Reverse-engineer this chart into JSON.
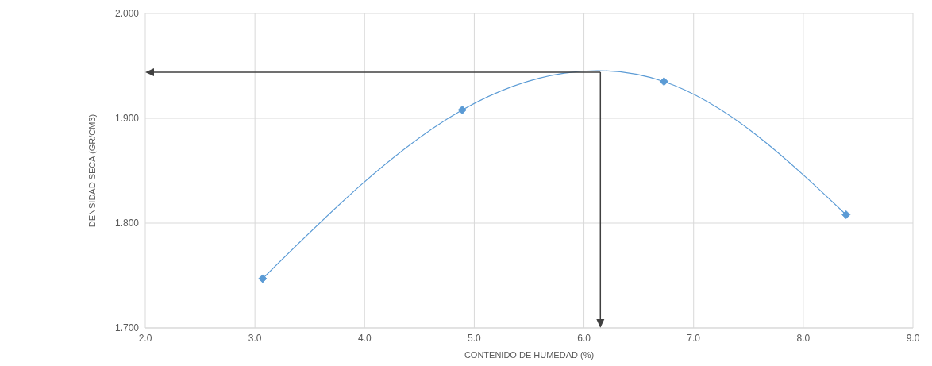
{
  "chart_data": {
    "type": "line",
    "xlabel": "CONTENIDO DE HUMEDAD (%)",
    "ylabel": "DENSIDAD SECA (GR/CM3)",
    "x": [
      3.07,
      4.89,
      6.73,
      8.39
    ],
    "series": [
      {
        "color": "#5b9bd5",
        "values": [
          1.747,
          1.908,
          1.935,
          1.808
        ]
      }
    ],
    "xlim": [
      2,
      9
    ],
    "xticks": [
      {
        "value": 2,
        "label": "2.0"
      },
      {
        "value": 3,
        "label": "3.0"
      },
      {
        "value": 4,
        "label": "4.0"
      },
      {
        "value": 5,
        "label": "5.0"
      },
      {
        "value": 6,
        "label": "6.0"
      },
      {
        "value": 7,
        "label": "7.0"
      },
      {
        "value": 8,
        "label": "8.0"
      },
      {
        "value": 9,
        "label": "9.0"
      }
    ],
    "ylim": [
      1.7,
      2
    ],
    "yticks": [
      {
        "value": 1.7,
        "label": "1.700"
      },
      {
        "value": 1.8,
        "label": "1.800"
      },
      {
        "value": 1.9,
        "label": "1.900"
      },
      {
        "value": 2,
        "label": "2.000"
      }
    ],
    "ref_lines": [
      {
        "axis": "y",
        "value": 1.944,
        "color": "#404040"
      },
      {
        "axis": "x",
        "value": 6.15,
        "color": "#404040"
      }
    ],
    "grid": true,
    "marker": "diamond",
    "legend": false
  }
}
